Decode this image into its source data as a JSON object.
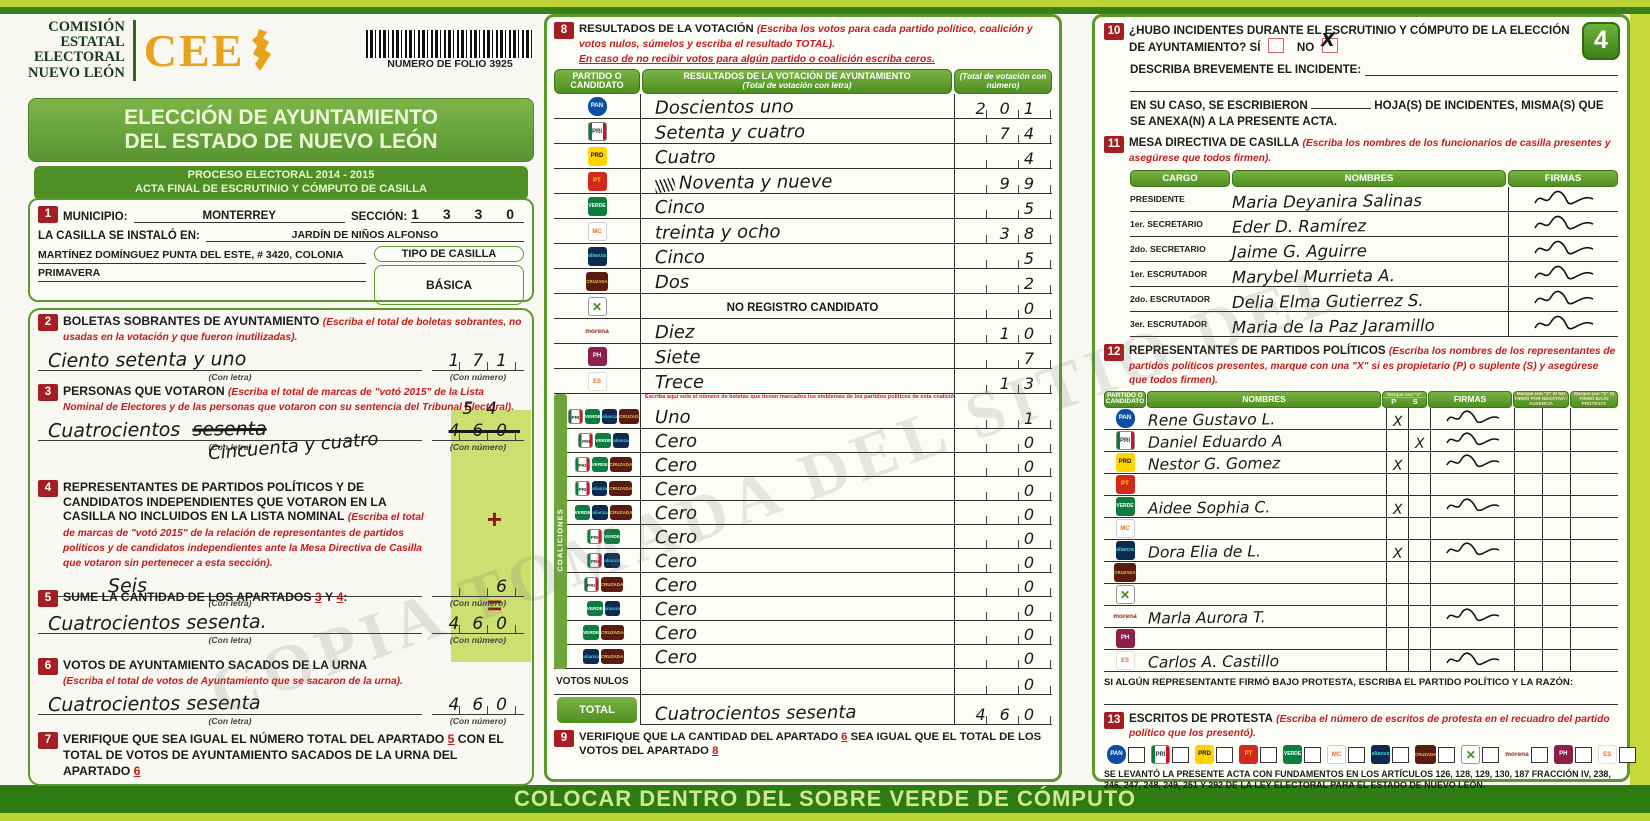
{
  "watermark": "COPIA TOMADA DEL SITIO DEL",
  "bottom_bar": "COLOCAR DENTRO DEL SOBRE VERDE DE CÓMPUTO",
  "labels": {
    "con_letra": "(Con letra)",
    "con_numero": "(Con número)"
  },
  "party_labels": {
    "pan": "PAN",
    "pri": "PRI",
    "prd": "PRD",
    "pt": "PT",
    "verde": "VERDE",
    "mc": "MC",
    "na": "alianza",
    "cc": "CRUZADA",
    "x": "✕",
    "morena": "morena",
    "ph": "PH",
    "es": "ES"
  },
  "header": {
    "org": "COMISIÓN\nESTATAL\nELECTORAL\nNUEVO LEÓN",
    "logo": "CEE",
    "folio_label": "NUMERO DE FOLIO 3925"
  },
  "banner": {
    "title": "ELECCIÓN DE AYUNTAMIENTO\nDEL ESTADO DE NUEVO LEÓN",
    "proceso": "PROCESO ELECTORAL  2014 - 2015",
    "acta": "ACTA FINAL DE ESCRUTINIO Y CÓMPUTO DE CASILLA"
  },
  "section1": {
    "num": "1",
    "municipio_label": "MUNICIPIO:",
    "municipio": "MONTERREY",
    "seccion_label": "SECCIÓN:",
    "seccion": "1 3 3 0",
    "casilla_label": "LA CASILLA SE INSTALÓ EN:",
    "casilla_line1": "JARDÍN DE NIÑOS ALFONSO",
    "casilla_line2": "MARTÍNEZ DOMÍNGUEZ PUNTA DEL ESTE, # 3420, COLONIA",
    "casilla_line3": "PRIMAVERA",
    "tipo_label": "TIPO DE CASILLA",
    "tipo": "BÁSICA"
  },
  "section2": {
    "num": "2",
    "title": "BOLETAS SOBRANTES DE AYUNTAMIENTO",
    "note": "(Escriba el total de boletas sobrantes, no usadas en la votación y que fueron inutilizadas).",
    "letra": "Ciento setenta y uno",
    "numero": "171"
  },
  "section3": {
    "num": "3",
    "title": "PERSONAS QUE VOTARON",
    "note": "(Escriba el total de marcas de \"votó 2015\" de la Lista Nominal de Electores y de las personas que votaron con su sentencia del Tribunal Electoral).",
    "letra_main": "Cuatrocientos",
    "letra_struck": "sesenta",
    "letra_added": "Cincuenta y cuatro",
    "numero_struck": "460",
    "numero_added": "54"
  },
  "section4": {
    "num": "4",
    "title": "REPRESENTANTES DE PARTIDOS POLÍTICOS Y DE CANDIDATOS INDEPENDIENTES QUE VOTARON EN LA CASILLA NO INCLUIDOS EN LA LISTA NOMINAL",
    "note": "(Escriba el total de marcas de \"votó 2015\" de la relación de representantes de partidos políticos y de candidatos independientes ante la Mesa Directiva de Casilla que votaron sin pertenecer a esta sección).",
    "letra": "Seis",
    "numero": "6",
    "plus": "+"
  },
  "section5": {
    "num": "5",
    "t1": "SUME LA CANTIDAD DE LOS APARTADOS",
    "r1": "3",
    "mid": "Y",
    "r2": "4",
    "colon": ":",
    "letra": "Cuatrocientos sesenta.",
    "numero": "460",
    "equals": "="
  },
  "section6": {
    "num": "6",
    "title": "VOTOS DE AYUNTAMIENTO SACADOS DE LA URNA",
    "note": "(Escriba el total de votos de Ayuntamiento que se sacaron de la urna).",
    "letra": "Cuatrocientos sesenta",
    "numero": "460"
  },
  "section7": {
    "num": "7",
    "t1": "VERIFIQUE QUE SEA IGUAL EL NÚMERO TOTAL DEL APARTADO",
    "r1": "5",
    "t2": "CON EL TOTAL DE VOTOS DE AYUNTAMIENTO SACADOS DE LA URNA DEL APARTADO",
    "r2": "6"
  },
  "section8": {
    "num": "8",
    "title": "RESULTADOS DE LA VOTACIÓN",
    "note1": "(Escriba los votos para cada partido político, coalición y votos nulos, súmelos y escriba el resultado TOTAL).",
    "note2": "En caso de no recibir votos para algún partido o coalición escriba ceros.",
    "col1": "PARTIDO O CANDIDATO",
    "col2": "RESULTADOS DE LA VOTACIÓN DE AYUNTAMIENTO",
    "col2b": "(Total de votación con letra)",
    "col3": "(Total de votación con número)",
    "rows": [
      {
        "logos": [
          "pan"
        ],
        "letra": "Doscientos uno",
        "numero": "201"
      },
      {
        "logos": [
          "pri"
        ],
        "letra": "Setenta y cuatro",
        "numero": "74"
      },
      {
        "logos": [
          "prd"
        ],
        "letra": "Cuatro",
        "numero": "4"
      },
      {
        "logos": [
          "pt"
        ],
        "letra": "Noventa y nueve",
        "numero": "99",
        "scribble": "true"
      },
      {
        "logos": [
          "verde"
        ],
        "letra": "Cinco",
        "numero": "5"
      },
      {
        "logos": [
          "mc"
        ],
        "letra": "treinta y ocho",
        "numero": "38"
      },
      {
        "logos": [
          "na"
        ],
        "letra": "Cinco",
        "numero": "5"
      },
      {
        "logos": [
          "cc"
        ],
        "letra": "Dos",
        "numero": "2"
      },
      {
        "logos": [
          "x"
        ],
        "letra": "NO REGISTRO CANDIDATO",
        "numero": "0",
        "printed": "true"
      },
      {
        "logos": [
          "morena"
        ],
        "letra": "Diez",
        "numero": "10"
      },
      {
        "logos": [
          "ph"
        ],
        "letra": "Siete",
        "numero": "7"
      },
      {
        "logos": [
          "es"
        ],
        "letra": "Trece",
        "numero": "13"
      }
    ],
    "coal_note": "Escriba aquí solo el número de boletas que tienen marcados los emblemas de los partidos políticos de esta coalición en sus posibles combinaciones.",
    "coal_label": "COALICIONES",
    "coal_rows": [
      {
        "logos": [
          "pri",
          "verde",
          "na",
          "cc"
        ],
        "letra": "Uno",
        "numero": "1"
      },
      {
        "logos": [
          "pri",
          "verde",
          "na"
        ],
        "letra": "Cero",
        "numero": "0"
      },
      {
        "logos": [
          "pri",
          "verde",
          "cc"
        ],
        "letra": "Cero",
        "numero": "0"
      },
      {
        "logos": [
          "pri",
          "na",
          "cc"
        ],
        "letra": "Cero",
        "numero": "0"
      },
      {
        "logos": [
          "verde",
          "na",
          "cc"
        ],
        "letra": "Cero",
        "numero": "0"
      },
      {
        "logos": [
          "pri",
          "verde"
        ],
        "letra": "Cero",
        "numero": "0"
      },
      {
        "logos": [
          "pri",
          "na"
        ],
        "letra": "Cero",
        "numero": "0"
      },
      {
        "logos": [
          "pri",
          "cc"
        ],
        "letra": "Cero",
        "numero": "0"
      },
      {
        "logos": [
          "verde",
          "na"
        ],
        "letra": "Cero",
        "numero": "0"
      },
      {
        "logos": [
          "verde",
          "cc"
        ],
        "letra": "Cero",
        "numero": "0"
      },
      {
        "logos": [
          "na",
          "cc"
        ],
        "letra": "Cero",
        "numero": "0"
      }
    ],
    "nulos_label": "VOTOS NULOS",
    "nulos_letra": "",
    "nulos_numero": "0",
    "total_label": "TOTAL",
    "total_letra": "Cuatrocientos sesenta",
    "total_numero": "460"
  },
  "section9": {
    "num": "9",
    "t1": "VERIFIQUE QUE LA CANTIDAD DEL APARTADO",
    "r1": "6",
    "t2": "SEA IGUAL QUE EL TOTAL DE LOS VOTOS DEL APARTADO",
    "r2": "8"
  },
  "section10": {
    "num": "10",
    "question": "¿HUBO INCIDENTES DURANTE EL ESCRUTINIO Y CÓMPUTO DE LA ELECCIÓN DE AYUNTAMIENTO?",
    "si": "SÍ",
    "no": "NO",
    "no_mark": "X",
    "page_badge": "4",
    "describa": "DESCRIBA BREVEMENTE EL INCIDENTE:",
    "encaso1": "EN SU CASO, SE ESCRIBIERON",
    "encaso2": "HOJA(S) DE INCIDENTES, MISMA(S) QUE SE ANEXA(N) A LA PRESENTE ACTA."
  },
  "section11": {
    "num": "11",
    "title": "MESA DIRECTIVA DE CASILLA",
    "note": "(Escriba los nombres de los funcionarios de casilla presentes y asegúrese que todos firmen).",
    "h_cargo": "CARGO",
    "h_nombres": "NOMBRES",
    "h_firmas": "FIRMAS",
    "rows": [
      {
        "cargo": "PRESIDENTE",
        "nombre": "Maria Deyanira Salinas"
      },
      {
        "cargo": "1er. SECRETARIO",
        "nombre": "Eder D. Ramírez"
      },
      {
        "cargo": "2do. SECRETARIO",
        "nombre": "Jaime G. Aguirre"
      },
      {
        "cargo": "1er. ESCRUTADOR",
        "nombre": "Marybel Murrieta A."
      },
      {
        "cargo": "2do. ESCRUTADOR",
        "nombre": "Delia Elma Gutierrez S."
      },
      {
        "cargo": "3er. ESCRUTADOR",
        "nombre": "Maria de la Paz Jaramillo"
      }
    ]
  },
  "section12": {
    "num": "12",
    "title": "REPRESENTANTES DE PARTIDOS POLÍTICOS",
    "note": "(Escriba los nombres de los representantes de partidos políticos presentes, marque con una \"X\" si es propietario (P) o suplente (S) y asegúrese que todos firmen).",
    "h_partido": "PARTIDO O CANDIDATO",
    "h_nombres": "NOMBRES",
    "h_marque": "Marque con \"X\"",
    "h_p": "P",
    "h_s": "S",
    "h_firmas": "FIRMAS",
    "h_nofirmo": "Marque con \"X\" SI NO FIRMÓ POR NEGATIVA / AUSENCIA",
    "h_protesta": "Marque con \"X\" SI FIRMÓ BAJO PROTESTA",
    "rows": [
      {
        "logos": [
          "pan"
        ],
        "nombre": "Rene Gustavo L.",
        "p": "X",
        "s": "",
        "sig": "true"
      },
      {
        "logos": [
          "pri"
        ],
        "nombre": "Daniel Eduardo A",
        "p": "",
        "s": "X",
        "sig": "true"
      },
      {
        "logos": [
          "prd"
        ],
        "nombre": "Nestor G. Gomez",
        "p": "X",
        "s": "",
        "sig": "true"
      },
      {
        "logos": [
          "pt"
        ],
        "nombre": "",
        "p": "",
        "s": "",
        "sig": "false"
      },
      {
        "logos": [
          "verde"
        ],
        "nombre": "Aidee Sophia C.",
        "p": "X",
        "s": "",
        "sig": "true"
      },
      {
        "logos": [
          "mc"
        ],
        "nombre": "",
        "p": "",
        "s": "",
        "sig": "false"
      },
      {
        "logos": [
          "na"
        ],
        "nombre": "Dora Elia de L.",
        "p": "X",
        "s": "",
        "sig": "true"
      },
      {
        "logos": [
          "cc"
        ],
        "nombre": "",
        "p": "",
        "s": "",
        "sig": "false"
      },
      {
        "logos": [
          "x"
        ],
        "nombre": "",
        "p": "",
        "s": "",
        "sig": "false"
      },
      {
        "logos": [
          "morena"
        ],
        "nombre": "Marla Aurora T.",
        "p": "",
        "s": "",
        "sig": "true"
      },
      {
        "logos": [
          "ph"
        ],
        "nombre": "",
        "p": "",
        "s": "",
        "sig": "false"
      },
      {
        "logos": [
          "es"
        ],
        "nombre": "Carlos A. Castillo",
        "p": "",
        "s": "",
        "sig": "true"
      }
    ],
    "protest_note": "SI ALGÚN REPRESENTANTE FIRMÓ BAJO PROTESTA, ESCRIBA EL PARTIDO POLÍTICO Y LA RAZÓN:"
  },
  "section13": {
    "num": "13",
    "title": "ESCRITOS DE PROTESTA",
    "note": "(Escriba el número de escritos de protesta en el recuadro del partido político que los presentó).",
    "logos": [
      "pan",
      "pri",
      "prd",
      "pt",
      "verde",
      "mc",
      "na",
      "cc",
      "x",
      "morena",
      "ph",
      "es"
    ]
  },
  "footer_legal": "SE LEVANTÓ LA PRESENTE ACTA CON FUNDAMENTOS EN LOS ARTÍCULOS 126, 128, 129, 130, 187 FRACCIÓN IV, 238, 246, 247, 248, 249, 251 Y 292 DE LA LEY ELECTORAL PARA EL ESTADO DE NUEVO LEÓN."
}
